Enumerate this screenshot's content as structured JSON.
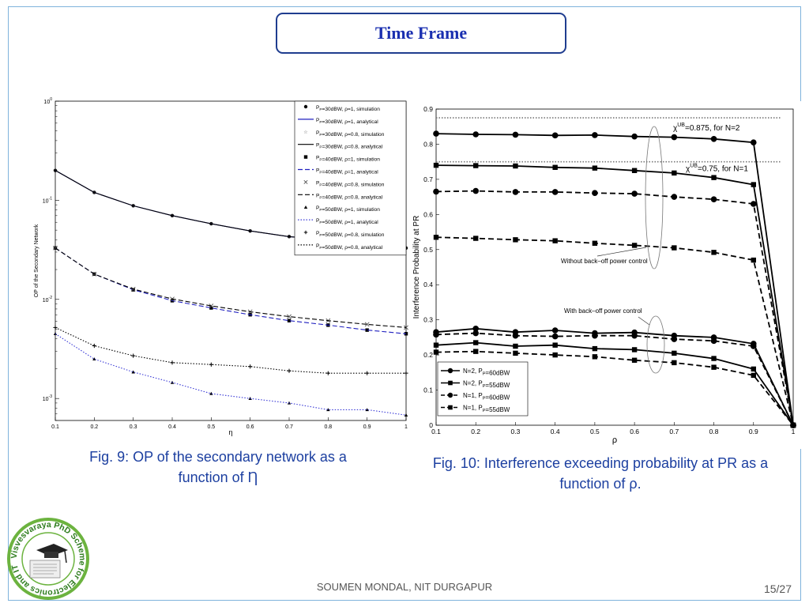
{
  "slide": {
    "title": "Time Frame",
    "footer": "SOUMEN MONDAL, NIT DURGAPUR",
    "page": "15/27",
    "logo_text": "Visvesvaraya PhD Scheme for Electronics and IT"
  },
  "captions": {
    "fig9": "Fig. 9: OP of the secondary network as a function of Ƞ",
    "fig10": "Fig. 10: Interference exceeding probability at PR as a function of  ρ."
  },
  "chart_data": [
    {
      "type": "line",
      "id": "fig9",
      "xlabel": "η",
      "ylabel": "OP of the Secondary Network",
      "yscale": "log",
      "xlim": [
        0.1,
        1
      ],
      "ylim": [
        0.0006,
        1
      ],
      "xticks": [
        "0.1",
        "0.2",
        "0.3",
        "0.4",
        "0.5",
        "0.6",
        "0.7",
        "0.8",
        "0.9",
        "1"
      ],
      "yticks": [
        {
          "value": 1,
          "label": "10^0"
        },
        {
          "value": 0.1,
          "label": "10^-1"
        },
        {
          "value": 0.01,
          "label": "10^-2"
        },
        {
          "value": 0.001,
          "label": "10^-3"
        }
      ],
      "grid": false,
      "legend_position": "top-right",
      "x": [
        0.1,
        0.2,
        0.3,
        0.4,
        0.5,
        0.6,
        0.7,
        0.8,
        0.9,
        1.0
      ],
      "series": [
        {
          "name": "P_P=30dBW, ρ=1, simulation",
          "style": "markers",
          "marker": "circle",
          "color": "#000000",
          "values": [
            0.2,
            0.12,
            0.088,
            0.07,
            0.058,
            0.049,
            0.043,
            0.04,
            0.037,
            0.033
          ]
        },
        {
          "name": "P_P=30dBW, ρ=1, analytical",
          "style": "solid",
          "color": "#1f1fbf",
          "values": [
            0.2,
            0.12,
            0.088,
            0.07,
            0.058,
            0.049,
            0.043,
            0.04,
            0.037,
            0.033
          ]
        },
        {
          "name": "P_P=30dBW, ρ=0.8, simulation",
          "style": "markers",
          "marker": "star",
          "color": "#555555",
          "values": [
            0.2,
            0.12,
            0.088,
            0.07,
            0.058,
            0.049,
            0.043,
            0.04,
            0.037,
            0.033
          ]
        },
        {
          "name": "P_P=30dBW, ρ=0.8, analytical",
          "style": "solid",
          "color": "#000000",
          "values": [
            0.2,
            0.12,
            0.088,
            0.07,
            0.058,
            0.049,
            0.043,
            0.04,
            0.037,
            0.033
          ]
        },
        {
          "name": "P_P=40dBW, ρ=1, simulation",
          "style": "markers",
          "marker": "square",
          "color": "#000000",
          "values": [
            0.033,
            0.018,
            0.0125,
            0.0097,
            0.0082,
            0.007,
            0.0061,
            0.0055,
            0.0049,
            0.0045
          ]
        },
        {
          "name": "P_P=40dBW, ρ=1, analytical",
          "style": "dashed",
          "color": "#1f1fbf",
          "values": [
            0.033,
            0.018,
            0.0125,
            0.0097,
            0.0082,
            0.007,
            0.0061,
            0.0055,
            0.0049,
            0.0045
          ]
        },
        {
          "name": "P_P=40dBW, ρ=0.8, simulation",
          "style": "markers",
          "marker": "x",
          "color": "#555555",
          "values": [
            0.033,
            0.018,
            0.0127,
            0.0101,
            0.0086,
            0.0075,
            0.0067,
            0.0061,
            0.0056,
            0.0052
          ]
        },
        {
          "name": "P_P=40dBW, ρ=0.8, analytical",
          "style": "dashed",
          "color": "#000000",
          "values": [
            0.033,
            0.018,
            0.0127,
            0.0101,
            0.0086,
            0.0075,
            0.0067,
            0.0061,
            0.0056,
            0.0052
          ]
        },
        {
          "name": "P_P=50dBW, ρ=1, simulation",
          "style": "markers",
          "marker": "triangle",
          "color": "#000000",
          "values": [
            0.0045,
            0.0025,
            0.00185,
            0.00145,
            0.00112,
            0.001,
            0.0009,
            0.00077,
            0.00077,
            0.00068
          ]
        },
        {
          "name": "P_P=50dBW, ρ=1, analytical",
          "style": "dotted",
          "color": "#3a3ad6",
          "values": [
            0.0045,
            0.0025,
            0.00185,
            0.00145,
            0.00112,
            0.001,
            0.0009,
            0.00077,
            0.00077,
            0.00068
          ]
        },
        {
          "name": "P_P=50dBW, ρ=0.8, simulation",
          "style": "markers",
          "marker": "plus",
          "color": "#000000",
          "values": [
            0.0052,
            0.0034,
            0.0027,
            0.0023,
            0.0022,
            0.0021,
            0.0019,
            0.0018,
            0.0018,
            0.0018
          ]
        },
        {
          "name": "P_P=50dBW, ρ=0.8, analytical",
          "style": "dotted",
          "color": "#000000",
          "values": [
            0.0052,
            0.0034,
            0.0027,
            0.0023,
            0.0022,
            0.0021,
            0.0019,
            0.0018,
            0.0018,
            0.0018
          ]
        }
      ]
    },
    {
      "type": "line",
      "id": "fig10",
      "xlabel": "ρ",
      "ylabel": "Interference Probability at PR",
      "xlim": [
        0.1,
        1
      ],
      "ylim": [
        0,
        0.9
      ],
      "xticks": [
        "0.1",
        "0.2",
        "0.3",
        "0.4",
        "0.5",
        "0.6",
        "0.7",
        "0.8",
        "0.9",
        "1"
      ],
      "yticks": [
        "0",
        "0.1",
        "0.2",
        "0.3",
        "0.4",
        "0.5",
        "0.6",
        "0.7",
        "0.8",
        "0.9"
      ],
      "grid": false,
      "legend_position": "bottom-left",
      "x": [
        0.1,
        0.2,
        0.3,
        0.4,
        0.5,
        0.6,
        0.7,
        0.8,
        0.9,
        1.0
      ],
      "series": [
        {
          "name": "N=2, P_P=60dBW",
          "style": "solid",
          "marker": "circle",
          "values": [
            0.83,
            0.828,
            0.827,
            0.825,
            0.826,
            0.822,
            0.82,
            0.815,
            0.805,
            0.0
          ]
        },
        {
          "name": "N=2, P_P=55dBW",
          "style": "solid",
          "marker": "square",
          "values": [
            0.74,
            0.739,
            0.738,
            0.734,
            0.732,
            0.725,
            0.718,
            0.705,
            0.685,
            0.0
          ]
        },
        {
          "name": "N=1, P_P=60dBW",
          "style": "dashed",
          "marker": "circle",
          "values": [
            0.665,
            0.667,
            0.664,
            0.664,
            0.661,
            0.659,
            0.65,
            0.643,
            0.63,
            0.0
          ]
        },
        {
          "name": "N=1, P_P=55dBW",
          "style": "dashed",
          "marker": "square",
          "values": [
            0.535,
            0.532,
            0.528,
            0.525,
            0.518,
            0.512,
            0.505,
            0.492,
            0.47,
            0.0
          ]
        },
        {
          "style": "solid",
          "marker": "circle",
          "values": [
            0.265,
            0.275,
            0.265,
            0.27,
            0.262,
            0.264,
            0.255,
            0.25,
            0.232,
            0.0
          ]
        },
        {
          "style": "solid",
          "marker": "square",
          "values": [
            0.228,
            0.235,
            0.225,
            0.228,
            0.218,
            0.215,
            0.205,
            0.19,
            0.16,
            0.0
          ]
        },
        {
          "style": "dashed",
          "marker": "circle",
          "values": [
            0.258,
            0.262,
            0.255,
            0.253,
            0.255,
            0.255,
            0.245,
            0.24,
            0.225,
            0.0
          ]
        },
        {
          "style": "dashed",
          "marker": "square",
          "values": [
            0.208,
            0.21,
            0.205,
            0.2,
            0.195,
            0.185,
            0.178,
            0.165,
            0.142,
            0.0
          ]
        }
      ],
      "reference_lines": [
        {
          "y": 0.875,
          "style": "dotted",
          "label_main": "χ",
          "label_sup": "UB",
          "label_rest": "=0.875, for N=2"
        },
        {
          "y": 0.75,
          "style": "dotted",
          "label_main": "χ",
          "label_sup": "UB",
          "label_rest": "=0.75, for N=1"
        }
      ],
      "annotations": [
        "Without back–off power control",
        "With back–off power control"
      ]
    }
  ]
}
